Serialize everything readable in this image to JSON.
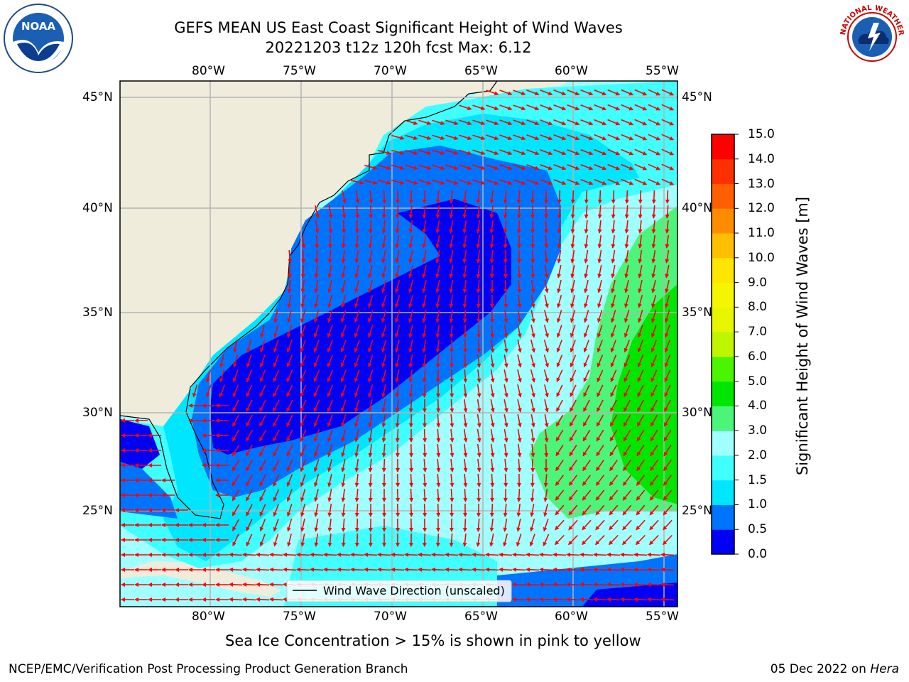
{
  "title": {
    "line1": "GEFS MEAN US East Coast Significant Height of Wind Waves",
    "line2": "20221203 t12z 120h fcst   Max: 6.12"
  },
  "map": {
    "lon_labels": [
      "80°W",
      "75°W",
      "70°W",
      "65°W",
      "60°W",
      "55°W"
    ],
    "lat_labels": [
      "45°N",
      "40°N",
      "35°N",
      "30°N",
      "25°N"
    ],
    "legend_label": "Wind Wave Direction (unscaled)",
    "arrow_color": "#ff0000",
    "land_color": "#efecdc"
  },
  "colorbar": {
    "label": "Significant Height of Wind Waves [m]",
    "ticks": [
      "0.0",
      "0.5",
      "1.0",
      "1.5",
      "2.0",
      "3.0",
      "4.0",
      "5.0",
      "6.0",
      "7.0",
      "8.0",
      "9.0",
      "10.0",
      "11.0",
      "12.0",
      "13.0",
      "14.0",
      "15.0"
    ],
    "colors": [
      "#0000f5",
      "#0073ff",
      "#00e6ff",
      "#40ffff",
      "#a0ffff",
      "#4bf57a",
      "#00e600",
      "#4bf500",
      "#c0f500",
      "#e6f500",
      "#f5f500",
      "#ffe600",
      "#ffbf00",
      "#ff8c00",
      "#ff5f00",
      "#ff3000",
      "#ff0000"
    ]
  },
  "note": "Sea Ice Concentration > 15% is shown in pink to yellow",
  "footer": {
    "left": "NCEP/EMC/Verification Post Processing Product Generation Branch",
    "right_date": "05 Dec 2022 on ",
    "right_host": "Hera"
  },
  "logos": {
    "noaa_text": "NOAA",
    "nws_text": "NATIONAL WEATHER SERVICE"
  }
}
